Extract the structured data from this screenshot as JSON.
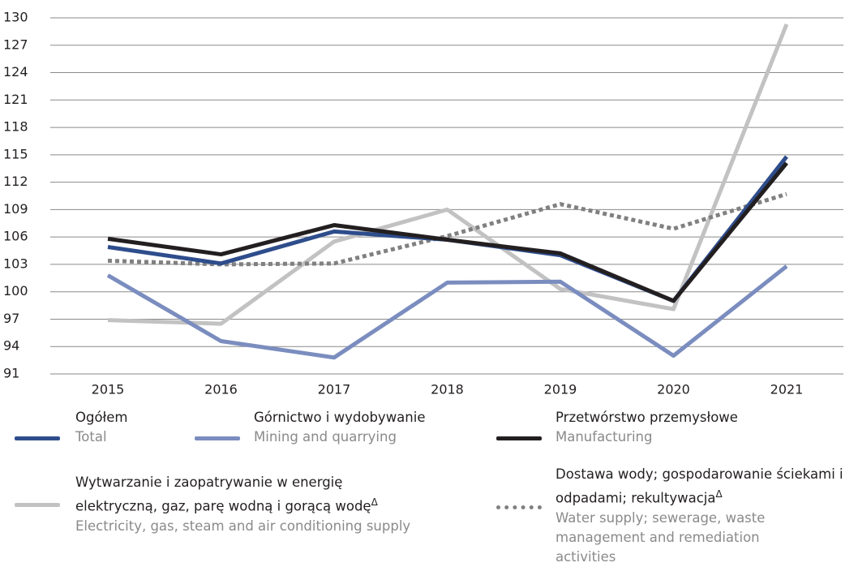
{
  "chart_data": {
    "type": "line",
    "categories": [
      "2015",
      "2016",
      "2017",
      "2018",
      "2019",
      "2020",
      "2021"
    ],
    "ylim": [
      91,
      130
    ],
    "yticks": [
      91,
      94,
      97,
      100,
      103,
      106,
      109,
      112,
      115,
      118,
      121,
      124,
      127,
      130
    ],
    "grid": true,
    "series": [
      {
        "name": "Ogółem",
        "name_en": "Total",
        "color": "#2e4d8c",
        "dash": false,
        "values": [
          104.9,
          103.1,
          106.6,
          105.7,
          104.0,
          99.0,
          114.8
        ]
      },
      {
        "name": "Górnictwo i wydobywanie",
        "name_en": "Mining and quarrying",
        "color": "#7b8dbf",
        "dash": false,
        "values": [
          101.8,
          94.6,
          92.8,
          101.0,
          101.1,
          93.0,
          102.8
        ]
      },
      {
        "name": "Przetwórstwo przemysłowe",
        "name_en": "Manufacturing",
        "color": "#231f20",
        "dash": false,
        "values": [
          105.8,
          104.1,
          107.3,
          105.7,
          104.2,
          99.0,
          114.1
        ]
      },
      {
        "name": "Wytwarzanie i zaopatrywanie w energię elektryczną, gaz, parę wodną i gorącą wodę",
        "footnote": "Δ",
        "name_en": "Electricity, gas, steam and air conditioning supply",
        "color": "#c2c2c2",
        "dash": false,
        "values": [
          96.9,
          96.5,
          105.5,
          109.0,
          100.3,
          98.1,
          129.3
        ]
      },
      {
        "name": "Dostawa wody; gospodarowanie ściekami i odpadami; rekultywacja",
        "footnote": "Δ",
        "name_en": "Water supply; sewerage, waste management and remediation activities",
        "color": "#808080",
        "dash": true,
        "values": [
          103.4,
          103.0,
          103.1,
          106.1,
          109.6,
          106.9,
          110.7
        ]
      }
    ]
  }
}
